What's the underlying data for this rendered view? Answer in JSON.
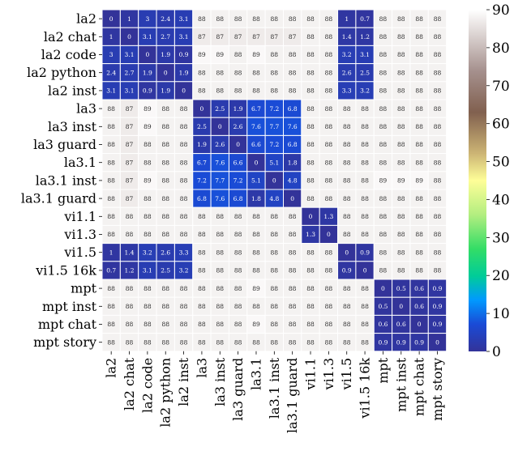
{
  "chart_data": {
    "type": "heatmap",
    "title": "",
    "xlabel": "",
    "ylabel": "",
    "colormap": "terrain",
    "vmin": 0,
    "vmax": 90,
    "colorbar_ticks": [
      "0",
      "10",
      "20",
      "30",
      "40",
      "50",
      "60",
      "70",
      "80",
      "90"
    ],
    "row_labels": [
      "la2",
      "la2 chat",
      "la2 code",
      "la2 python",
      "la2 inst",
      "la3",
      "la3 inst",
      "la3 guard",
      "la3.1",
      "la3.1 inst",
      "la3.1 guard",
      "vi1.1",
      "vi1.3",
      "vi1.5",
      "vi1.5 16k",
      "mpt",
      "mpt inst",
      "mpt chat",
      "mpt story"
    ],
    "col_labels": [
      "la2",
      "la2 chat",
      "la2 code",
      "la2 python",
      "la2 inst",
      "la3",
      "la3 inst",
      "la3 guard",
      "la3.1",
      "la3.1 inst",
      "la3.1 guard",
      "vi1.1",
      "vi1.3",
      "vi1.5",
      "vi1.5 16k",
      "mpt",
      "mpt inst",
      "mpt chat",
      "mpt story"
    ],
    "values": [
      [
        "0",
        "1",
        "3",
        "2.4",
        "3.1",
        "88",
        "88",
        "88",
        "88",
        "88",
        "88",
        "88",
        "88",
        "1",
        "0.7",
        "88",
        "88",
        "88",
        "88"
      ],
      [
        "1",
        "0",
        "3.1",
        "2.7",
        "3.1",
        "87",
        "87",
        "87",
        "87",
        "87",
        "87",
        "88",
        "88",
        "1.4",
        "1.2",
        "88",
        "88",
        "88",
        "88"
      ],
      [
        "3",
        "3.1",
        "0",
        "1.9",
        "0.9",
        "89",
        "89",
        "88",
        "89",
        "88",
        "88",
        "88",
        "88",
        "3.2",
        "3.1",
        "88",
        "88",
        "88",
        "88"
      ],
      [
        "2.4",
        "2.7",
        "1.9",
        "0",
        "1.9",
        "88",
        "88",
        "88",
        "88",
        "88",
        "88",
        "88",
        "88",
        "2.6",
        "2.5",
        "88",
        "88",
        "88",
        "88"
      ],
      [
        "3.1",
        "3.1",
        "0.9",
        "1.9",
        "0",
        "88",
        "88",
        "88",
        "88",
        "88",
        "88",
        "88",
        "88",
        "3.3",
        "3.2",
        "88",
        "88",
        "88",
        "88"
      ],
      [
        "88",
        "87",
        "89",
        "88",
        "88",
        "0",
        "2.5",
        "1.9",
        "6.7",
        "7.2",
        "6.8",
        "88",
        "88",
        "88",
        "88",
        "88",
        "88",
        "88",
        "88"
      ],
      [
        "88",
        "87",
        "89",
        "88",
        "88",
        "2.5",
        "0",
        "2.6",
        "7.6",
        "7.7",
        "7.6",
        "88",
        "88",
        "88",
        "88",
        "88",
        "88",
        "88",
        "88"
      ],
      [
        "88",
        "87",
        "88",
        "88",
        "88",
        "1.9",
        "2.6",
        "0",
        "6.6",
        "7.2",
        "6.8",
        "88",
        "88",
        "88",
        "88",
        "88",
        "88",
        "88",
        "88"
      ],
      [
        "88",
        "87",
        "88",
        "88",
        "88",
        "6.7",
        "7.6",
        "6.6",
        "0",
        "5.1",
        "1.8",
        "88",
        "88",
        "88",
        "88",
        "88",
        "88",
        "88",
        "88"
      ],
      [
        "88",
        "87",
        "89",
        "88",
        "88",
        "7.2",
        "7.7",
        "7.2",
        "5.1",
        "0",
        "4.8",
        "88",
        "88",
        "88",
        "88",
        "89",
        "89",
        "89",
        "88"
      ],
      [
        "88",
        "87",
        "88",
        "88",
        "88",
        "6.8",
        "7.6",
        "6.8",
        "1.8",
        "4.8",
        "0",
        "88",
        "88",
        "88",
        "88",
        "88",
        "88",
        "88",
        "88"
      ],
      [
        "88",
        "88",
        "88",
        "88",
        "88",
        "88",
        "88",
        "88",
        "88",
        "88",
        "88",
        "0",
        "1.3",
        "88",
        "88",
        "88",
        "88",
        "88",
        "88"
      ],
      [
        "88",
        "88",
        "88",
        "88",
        "88",
        "88",
        "88",
        "88",
        "88",
        "88",
        "88",
        "1.3",
        "0",
        "88",
        "88",
        "88",
        "88",
        "88",
        "88"
      ],
      [
        "1",
        "1.4",
        "3.2",
        "2.6",
        "3.3",
        "88",
        "88",
        "88",
        "88",
        "88",
        "88",
        "88",
        "88",
        "0",
        "0.9",
        "88",
        "88",
        "88",
        "88"
      ],
      [
        "0.7",
        "1.2",
        "3.1",
        "2.5",
        "3.2",
        "88",
        "88",
        "88",
        "88",
        "88",
        "88",
        "88",
        "88",
        "0.9",
        "0",
        "88",
        "88",
        "88",
        "88"
      ],
      [
        "88",
        "88",
        "88",
        "88",
        "88",
        "88",
        "88",
        "88",
        "89",
        "88",
        "88",
        "88",
        "88",
        "88",
        "88",
        "0",
        "0.5",
        "0.6",
        "0.9"
      ],
      [
        "88",
        "88",
        "88",
        "88",
        "88",
        "88",
        "88",
        "88",
        "88",
        "88",
        "88",
        "88",
        "88",
        "88",
        "88",
        "0.5",
        "0",
        "0.6",
        "0.9"
      ],
      [
        "88",
        "88",
        "88",
        "88",
        "88",
        "88",
        "88",
        "88",
        "89",
        "88",
        "88",
        "88",
        "88",
        "88",
        "88",
        "0.6",
        "0.6",
        "0",
        "0.9"
      ],
      [
        "88",
        "88",
        "88",
        "88",
        "88",
        "88",
        "88",
        "88",
        "88",
        "88",
        "88",
        "88",
        "88",
        "88",
        "88",
        "0.9",
        "0.9",
        "0.9",
        "0"
      ]
    ]
  }
}
